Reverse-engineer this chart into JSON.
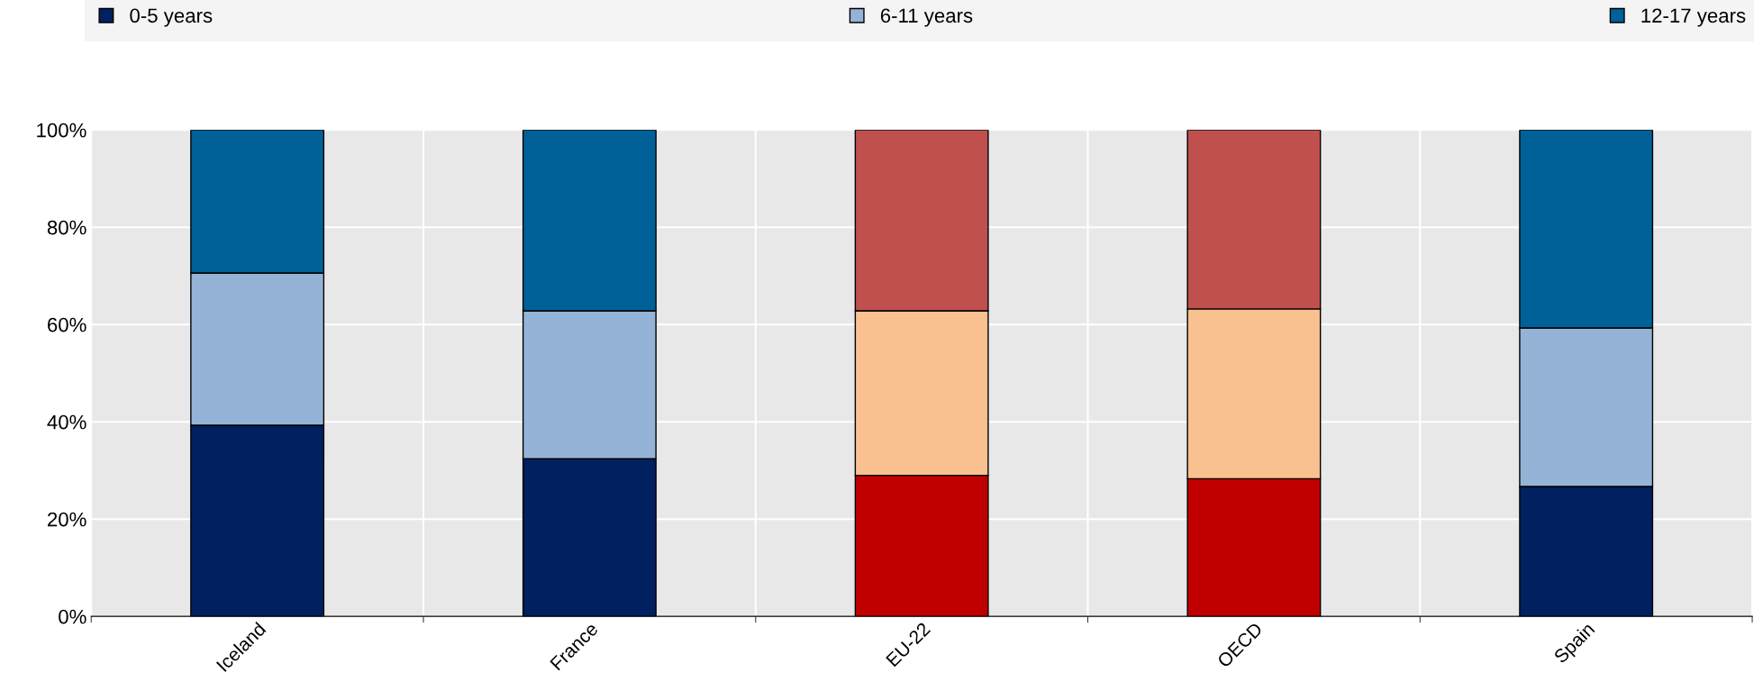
{
  "chart_data": {
    "type": "bar",
    "stacked": true,
    "categories": [
      "Iceland",
      "France",
      "EU-22",
      "OECD",
      "Spain"
    ],
    "series": [
      {
        "name": "0-5 years",
        "color": "#002060",
        "colors": [
          "#002060",
          "#002060",
          "#c00000",
          "#c00000",
          "#002060"
        ],
        "values": [
          39.3,
          32.4,
          29.0,
          28.3,
          26.7
        ]
      },
      {
        "name": "6-11 years",
        "color": "#95b3d7",
        "colors": [
          "#95b3d7",
          "#95b3d7",
          "#f9c090",
          "#f9c090",
          "#95b3d7"
        ],
        "values": [
          31.3,
          30.4,
          33.8,
          34.9,
          32.6
        ]
      },
      {
        "name": "12-17 years",
        "color": "#006199",
        "colors": [
          "#006199",
          "#006199",
          "#c0504d",
          "#c0504d",
          "#006199"
        ],
        "values": [
          29.4,
          37.2,
          37.2,
          36.8,
          40.7
        ]
      }
    ],
    "ylim": [
      0,
      100
    ],
    "yticks": [
      {
        "value": 0,
        "label": "0%"
      },
      {
        "value": 20,
        "label": "20%"
      },
      {
        "value": 40,
        "label": "40%"
      },
      {
        "value": 60,
        "label": "60%"
      },
      {
        "value": 80,
        "label": "80%"
      },
      {
        "value": 100,
        "label": "100%"
      }
    ],
    "grid": true,
    "legend": "top"
  }
}
